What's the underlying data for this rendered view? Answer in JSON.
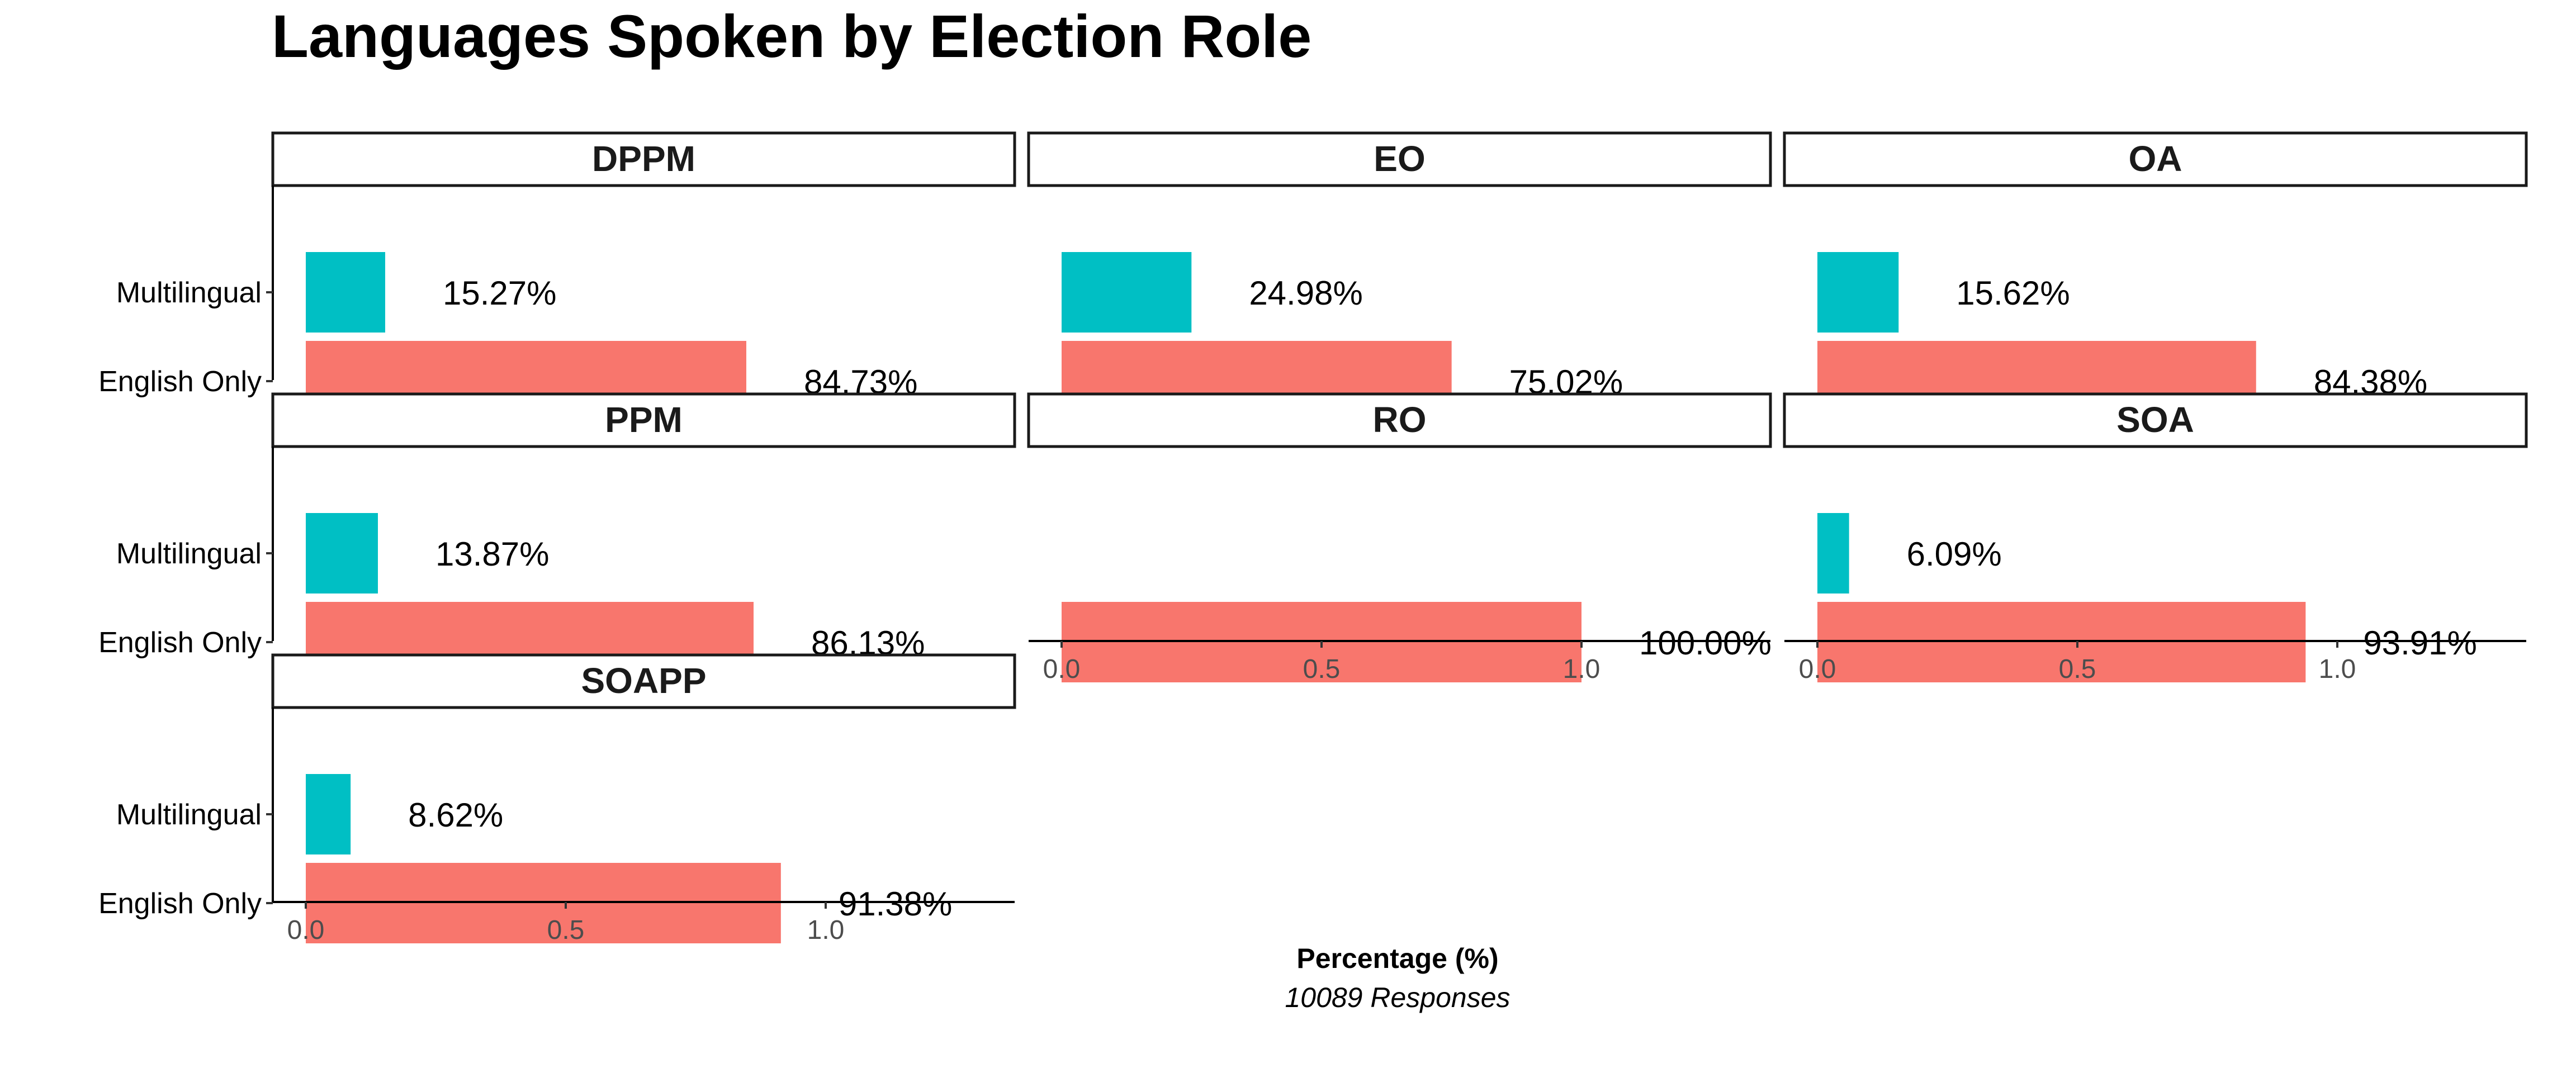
{
  "chart_data": {
    "type": "bar",
    "orientation": "horizontal",
    "faceted": true,
    "title": "Languages Spoken by Election Role",
    "xlabel": "Percentage (%)",
    "caption": "10089 Responses",
    "categories": [
      "Multilingual",
      "English Only"
    ],
    "category_colors": {
      "Multilingual": "#00BFC4",
      "English Only": "#F8766D"
    },
    "xlim": [
      0,
      1.35
    ],
    "xticks": [
      0.0,
      0.5,
      1.0
    ],
    "xtick_labels": [
      "0.0",
      "0.5",
      "1.0"
    ],
    "legend": "none",
    "grid": false,
    "facets": [
      {
        "name": "DPPM",
        "values": [
          0.1527,
          0.8473
        ],
        "labels": [
          "15.27%",
          "84.73%"
        ]
      },
      {
        "name": "EO",
        "values": [
          0.2498,
          0.7502
        ],
        "labels": [
          "24.98%",
          "75.02%"
        ]
      },
      {
        "name": "OA",
        "values": [
          0.1562,
          0.8438
        ],
        "labels": [
          "15.62%",
          "84.38%"
        ]
      },
      {
        "name": "PPM",
        "values": [
          0.1387,
          0.8613
        ],
        "labels": [
          "13.87%",
          "86.13%"
        ]
      },
      {
        "name": "RO",
        "values": [
          null,
          1.0
        ],
        "labels": [
          "",
          "100.00%"
        ]
      },
      {
        "name": "SOA",
        "values": [
          0.0609,
          0.9391
        ],
        "labels": [
          "6.09%",
          "93.91%"
        ]
      },
      {
        "name": "SOAPP",
        "values": [
          0.0862,
          0.9138
        ],
        "labels": [
          "8.62%",
          "91.38%"
        ]
      }
    ]
  }
}
